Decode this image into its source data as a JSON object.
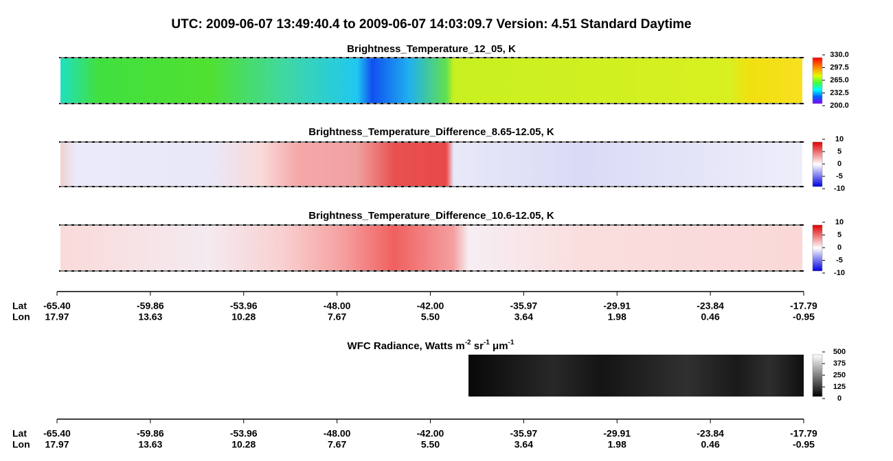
{
  "header": {
    "title": "UTC:  2009-06-07   13:49:40.4  to  2009-06-07   14:03:09.7    Version: 4.51  Standard Daytime"
  },
  "panels": [
    {
      "title": "Brightness_Temperature_12_05, K",
      "colorbar_ticks": [
        "330.0",
        "297.5",
        "265.0",
        "232.5",
        "200.0"
      ]
    },
    {
      "title": "Brightness_Temperature_Difference_8.65-12.05, K",
      "colorbar_ticks": [
        "10",
        "5",
        "0",
        "-5",
        "-10"
      ]
    },
    {
      "title": "Brightness_Temperature_Difference_10.6-12.05, K",
      "colorbar_ticks": [
        "10",
        "5",
        "0",
        "-5",
        "-10"
      ]
    },
    {
      "title_parts": [
        "WFC Radiance, Watts m",
        "-2",
        " sr",
        "-1",
        " μm",
        "-1"
      ],
      "colorbar_ticks": [
        "500",
        "375",
        "250",
        "125",
        "0"
      ]
    }
  ],
  "axes": [
    {
      "lat_label": "Lat",
      "lon_label": "Lon",
      "lat": [
        "-65.40",
        "-59.86",
        "-53.96",
        "-48.00",
        "-42.00",
        "-35.97",
        "-29.91",
        "-23.84",
        "-17.79"
      ],
      "lon": [
        "17.97",
        "13.63",
        "10.28",
        "7.67",
        "5.50",
        "3.64",
        "1.98",
        "0.46",
        "-0.95"
      ]
    },
    {
      "lat_label": "Lat",
      "lon_label": "Lon",
      "lat": [
        "-65.40",
        "-59.86",
        "-53.96",
        "-48.00",
        "-42.00",
        "-35.97",
        "-29.91",
        "-23.84",
        "-17.79"
      ],
      "lon": [
        "17.97",
        "13.63",
        "10.28",
        "7.67",
        "5.50",
        "3.64",
        "1.98",
        "0.46",
        "-0.95"
      ]
    }
  ]
}
